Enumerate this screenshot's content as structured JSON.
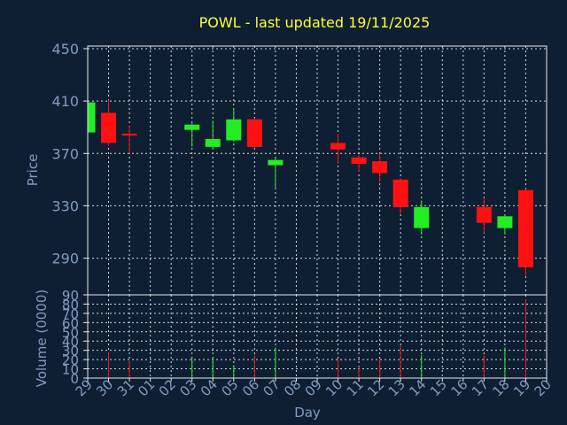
{
  "colors": {
    "background": "#0f1f33",
    "axis_text": "#7f9cc0",
    "title": "#ffff33",
    "frame": "#e8e8e8",
    "grid": "#d8d8d8",
    "up": "#22ee22",
    "down": "#ff1111"
  },
  "chart_data": [
    {
      "type": "candlestick",
      "title": "POWL - last updated 19/11/2025",
      "xlabel": "Day",
      "ylabel": "Price",
      "ylim": [
        262,
        452
      ],
      "yticks": [
        290,
        330,
        370,
        410,
        450
      ],
      "grid": true,
      "categories": [
        "29",
        "30",
        "31",
        "01",
        "02",
        "03",
        "04",
        "05",
        "06",
        "07",
        "08",
        "09",
        "10",
        "11",
        "12",
        "13",
        "14",
        "15",
        "16",
        "17",
        "18",
        "19",
        "20"
      ],
      "candles": [
        {
          "day": "29",
          "open": 386,
          "close": 409,
          "high": 410,
          "low": 384
        },
        {
          "day": "30",
          "open": 401,
          "close": 378,
          "high": 411,
          "low": 376
        },
        {
          "day": "31",
          "open": 385,
          "close": 384,
          "high": 391,
          "low": 370
        },
        {
          "day": "03",
          "open": 388,
          "close": 392,
          "high": 393,
          "low": 375
        },
        {
          "day": "04",
          "open": 375,
          "close": 381,
          "high": 395,
          "low": 373
        },
        {
          "day": "05",
          "open": 380,
          "close": 396,
          "high": 404,
          "low": 379
        },
        {
          "day": "06",
          "open": 396,
          "close": 375,
          "high": 397,
          "low": 374
        },
        {
          "day": "07",
          "open": 361,
          "close": 365,
          "high": 366,
          "low": 343
        },
        {
          "day": "10",
          "open": 378,
          "close": 373,
          "high": 385,
          "low": 362
        },
        {
          "day": "11",
          "open": 367,
          "close": 362,
          "high": 369,
          "low": 356
        },
        {
          "day": "12",
          "open": 364,
          "close": 355,
          "high": 370,
          "low": 348
        },
        {
          "day": "13",
          "open": 350,
          "close": 329,
          "high": 351,
          "low": 324
        },
        {
          "day": "14",
          "open": 313,
          "close": 329,
          "high": 334,
          "low": 308
        },
        {
          "day": "17",
          "open": 329,
          "close": 317,
          "high": 336,
          "low": 309
        },
        {
          "day": "18",
          "open": 313,
          "close": 322,
          "high": 323,
          "low": 308
        },
        {
          "day": "19",
          "open": 342,
          "close": 283,
          "high": 343,
          "low": 276
        }
      ]
    },
    {
      "type": "bar",
      "ylabel": "Volume (0000)",
      "ylim": [
        0,
        90
      ],
      "yticks": [
        0,
        10,
        20,
        30,
        40,
        50,
        60,
        70,
        80,
        90
      ],
      "categories": [
        "29",
        "30",
        "31",
        "01",
        "02",
        "03",
        "04",
        "05",
        "06",
        "07",
        "08",
        "09",
        "10",
        "11",
        "12",
        "13",
        "14",
        "15",
        "16",
        "17",
        "18",
        "19",
        "20"
      ],
      "volumes": [
        {
          "day": "29",
          "value": 18,
          "color": "up"
        },
        {
          "day": "30",
          "value": 28,
          "color": "down"
        },
        {
          "day": "31",
          "value": 18,
          "color": "down"
        },
        {
          "day": "03",
          "value": 21,
          "color": "up"
        },
        {
          "day": "04",
          "value": 21,
          "color": "up"
        },
        {
          "day": "05",
          "value": 14,
          "color": "up"
        },
        {
          "day": "06",
          "value": 25,
          "color": "down"
        },
        {
          "day": "07",
          "value": 33,
          "color": "up"
        },
        {
          "day": "10",
          "value": 21,
          "color": "down"
        },
        {
          "day": "11",
          "value": 12,
          "color": "down"
        },
        {
          "day": "12",
          "value": 21,
          "color": "down"
        },
        {
          "day": "13",
          "value": 35,
          "color": "down"
        },
        {
          "day": "14",
          "value": 25,
          "color": "up"
        },
        {
          "day": "17",
          "value": 25,
          "color": "down"
        },
        {
          "day": "18",
          "value": 33,
          "color": "up"
        },
        {
          "day": "19",
          "value": 85,
          "color": "down"
        }
      ]
    }
  ]
}
